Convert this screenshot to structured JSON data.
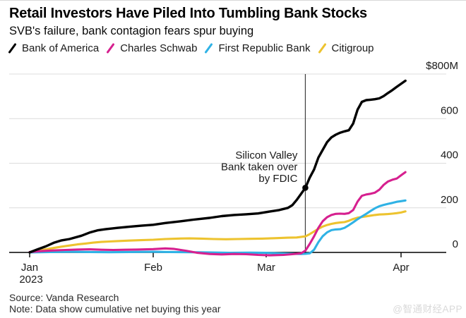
{
  "colors": {
    "gridline": "#dcdcdc",
    "axis": "#000000",
    "annotation_line": "#3d3d3d",
    "marker_dot": "#000000",
    "watermark": "#d9d9d9"
  },
  "footer": {
    "source": "Source: Vanda Research",
    "note": "Note: Data show cumulative net buying this year",
    "watermark": "@智通财经APP"
  },
  "chart_data": {
    "type": "line",
    "title": "Retail Investors Have Piled Into Tumbling Bank Stocks",
    "subtitle": "SVB's failure, bank contagion fears spur buying",
    "unit": "$M",
    "ylim": [
      0,
      800
    ],
    "grid": "horizontal",
    "legend_position": "top",
    "x_axis_note": "days are offsets from Jan 1 2023",
    "y_ticks": [
      {
        "value": 800,
        "label": "$800M"
      },
      {
        "value": 600,
        "label": "600"
      },
      {
        "value": 400,
        "label": "400"
      },
      {
        "value": 200,
        "label": "200"
      },
      {
        "value": 0,
        "label": "0"
      }
    ],
    "x_ticks": [
      {
        "day": 0,
        "label": "Jan",
        "sublabel": "2023"
      },
      {
        "day": 31,
        "label": "Feb"
      },
      {
        "day": 59,
        "label": "Mar"
      },
      {
        "day": 90,
        "label": "Apr"
      }
    ],
    "annotation": {
      "lines": [
        "Silicon Valley",
        "Bank taken over",
        "by FDIC"
      ],
      "day": 68,
      "marker_series": "Bank of America",
      "marker_value": 290
    },
    "series": [
      {
        "name": "Bank of America",
        "color": "#000000",
        "width": 3.4,
        "points": [
          [
            0,
            0
          ],
          [
            2,
            14
          ],
          [
            4,
            27
          ],
          [
            6,
            43
          ],
          [
            8,
            54
          ],
          [
            10,
            60
          ],
          [
            13,
            75
          ],
          [
            15,
            89
          ],
          [
            17,
            99
          ],
          [
            19,
            104
          ],
          [
            22,
            110
          ],
          [
            25,
            115
          ],
          [
            28,
            120
          ],
          [
            31,
            124
          ],
          [
            34,
            132
          ],
          [
            38,
            140
          ],
          [
            41,
            147
          ],
          [
            45,
            155
          ],
          [
            48,
            163
          ],
          [
            51,
            168
          ],
          [
            54,
            171
          ],
          [
            57,
            175
          ],
          [
            60,
            184
          ],
          [
            62,
            190
          ],
          [
            64,
            200
          ],
          [
            65,
            212
          ],
          [
            66,
            235
          ],
          [
            67,
            262
          ],
          [
            68,
            290
          ],
          [
            69,
            335
          ],
          [
            70,
            372
          ],
          [
            71,
            425
          ],
          [
            72,
            460
          ],
          [
            73,
            495
          ],
          [
            74,
            516
          ],
          [
            75,
            528
          ],
          [
            76,
            537
          ],
          [
            77,
            543
          ],
          [
            78,
            548
          ],
          [
            79,
            578
          ],
          [
            80,
            640
          ],
          [
            81,
            675
          ],
          [
            82,
            683
          ],
          [
            83,
            685
          ],
          [
            84,
            687
          ],
          [
            85,
            691
          ],
          [
            86,
            701
          ],
          [
            87,
            715
          ],
          [
            88,
            728
          ],
          [
            89,
            742
          ],
          [
            90,
            756
          ],
          [
            91,
            770
          ]
        ]
      },
      {
        "name": "Charles Schwab",
        "color": "#d6208f",
        "width": 3.1,
        "points": [
          [
            0,
            2
          ],
          [
            3,
            6
          ],
          [
            6,
            9
          ],
          [
            9,
            11
          ],
          [
            12,
            13
          ],
          [
            15,
            14
          ],
          [
            18,
            12
          ],
          [
            21,
            11
          ],
          [
            24,
            12
          ],
          [
            27,
            13
          ],
          [
            31,
            15
          ],
          [
            34,
            18
          ],
          [
            36,
            16
          ],
          [
            39,
            8
          ],
          [
            42,
            -2
          ],
          [
            45,
            -7
          ],
          [
            48,
            -9
          ],
          [
            51,
            -7
          ],
          [
            54,
            -8
          ],
          [
            57,
            -11
          ],
          [
            60,
            -13
          ],
          [
            63,
            -11
          ],
          [
            65,
            -8
          ],
          [
            67,
            -4
          ],
          [
            68,
            8
          ],
          [
            69,
            38
          ],
          [
            70,
            72
          ],
          [
            71,
            110
          ],
          [
            72,
            140
          ],
          [
            73,
            158
          ],
          [
            74,
            168
          ],
          [
            75,
            173
          ],
          [
            76,
            174
          ],
          [
            77,
            173
          ],
          [
            78,
            176
          ],
          [
            79,
            190
          ],
          [
            80,
            228
          ],
          [
            81,
            254
          ],
          [
            82,
            260
          ],
          [
            83,
            263
          ],
          [
            84,
            268
          ],
          [
            85,
            281
          ],
          [
            86,
            303
          ],
          [
            87,
            318
          ],
          [
            88,
            326
          ],
          [
            89,
            331
          ],
          [
            90,
            346
          ],
          [
            91,
            360
          ]
        ]
      },
      {
        "name": "First Republic Bank",
        "color": "#2fb2e5",
        "width": 3.1,
        "points": [
          [
            0,
            0
          ],
          [
            5,
            2
          ],
          [
            10,
            3
          ],
          [
            15,
            2
          ],
          [
            20,
            1
          ],
          [
            25,
            2
          ],
          [
            31,
            3
          ],
          [
            35,
            2
          ],
          [
            40,
            1
          ],
          [
            45,
            0
          ],
          [
            50,
            -2
          ],
          [
            55,
            -1
          ],
          [
            59,
            -2
          ],
          [
            62,
            -4
          ],
          [
            65,
            -6
          ],
          [
            67,
            -7
          ],
          [
            68,
            -6
          ],
          [
            69,
            -4
          ],
          [
            70,
            12
          ],
          [
            71,
            46
          ],
          [
            72,
            73
          ],
          [
            73,
            90
          ],
          [
            74,
            100
          ],
          [
            75,
            103
          ],
          [
            76,
            104
          ],
          [
            77,
            110
          ],
          [
            78,
            122
          ],
          [
            79,
            135
          ],
          [
            80,
            149
          ],
          [
            81,
            161
          ],
          [
            82,
            173
          ],
          [
            83,
            186
          ],
          [
            84,
            198
          ],
          [
            85,
            207
          ],
          [
            86,
            213
          ],
          [
            87,
            218
          ],
          [
            88,
            222
          ],
          [
            89,
            227
          ],
          [
            90,
            230
          ],
          [
            91,
            233
          ]
        ]
      },
      {
        "name": "Citigroup",
        "color": "#edc32f",
        "width": 3.1,
        "points": [
          [
            0,
            0
          ],
          [
            2,
            7
          ],
          [
            4,
            14
          ],
          [
            6,
            20
          ],
          [
            8,
            26
          ],
          [
            10,
            31
          ],
          [
            12,
            36
          ],
          [
            14,
            40
          ],
          [
            16,
            44
          ],
          [
            18,
            47
          ],
          [
            20,
            49
          ],
          [
            22,
            51
          ],
          [
            25,
            53
          ],
          [
            28,
            55
          ],
          [
            31,
            57
          ],
          [
            34,
            60
          ],
          [
            37,
            62
          ],
          [
            40,
            63
          ],
          [
            43,
            62
          ],
          [
            46,
            60
          ],
          [
            49,
            59
          ],
          [
            52,
            60
          ],
          [
            55,
            61
          ],
          [
            58,
            62
          ],
          [
            61,
            64
          ],
          [
            64,
            66
          ],
          [
            66,
            67
          ],
          [
            68,
            72
          ],
          [
            69,
            82
          ],
          [
            70,
            94
          ],
          [
            71,
            106
          ],
          [
            72,
            116
          ],
          [
            73,
            123
          ],
          [
            74,
            128
          ],
          [
            75,
            132
          ],
          [
            76,
            134
          ],
          [
            77,
            136
          ],
          [
            78,
            142
          ],
          [
            79,
            150
          ],
          [
            80,
            156
          ],
          [
            81,
            159
          ],
          [
            82,
            162
          ],
          [
            83,
            165
          ],
          [
            84,
            168
          ],
          [
            85,
            170
          ],
          [
            86,
            171
          ],
          [
            87,
            172
          ],
          [
            88,
            174
          ],
          [
            89,
            176
          ],
          [
            90,
            179
          ],
          [
            91,
            184
          ]
        ]
      }
    ]
  }
}
